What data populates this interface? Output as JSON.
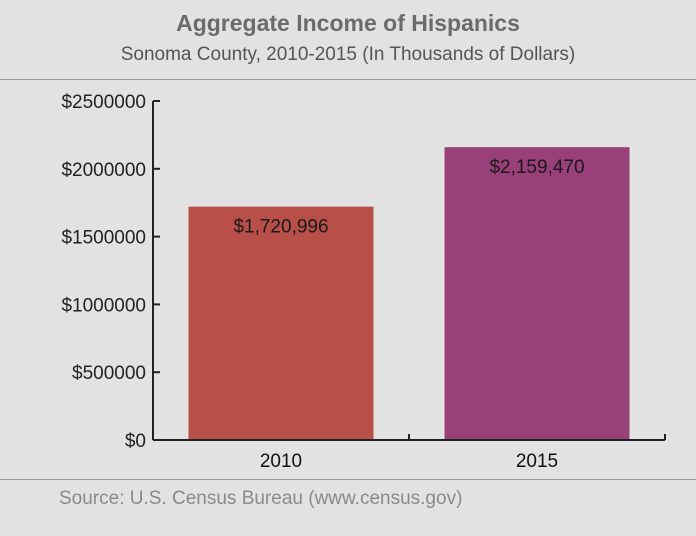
{
  "colors": {
    "background": "#e2e2e2",
    "axis": "#222222",
    "title": "#6b6b6b",
    "source": "#8a8a8a"
  },
  "chart_data": {
    "type": "bar",
    "title": "Aggregate Income of Hispanics",
    "subtitle": "Sonoma County, 2010-2015 (In Thousands of Dollars)",
    "xlabel": "",
    "ylabel": "",
    "categories": [
      "2010",
      "2015"
    ],
    "values": [
      1720996,
      2159470
    ],
    "value_labels": [
      "$1,720,996",
      "$2,159,470"
    ],
    "bar_colors": [
      "#b84f48",
      "#993f79"
    ],
    "ylim": [
      0,
      2500000
    ],
    "yticks": [
      0,
      500000,
      1000000,
      1500000,
      2000000,
      2500000
    ],
    "ytick_labels": [
      "$0",
      "$500000",
      "$1000000",
      "$1500000",
      "$2000000",
      "$2500000"
    ],
    "grid": false,
    "legend": "none"
  },
  "footer": {
    "source": "Source: U.S. Census Bureau (www.census.gov)"
  }
}
